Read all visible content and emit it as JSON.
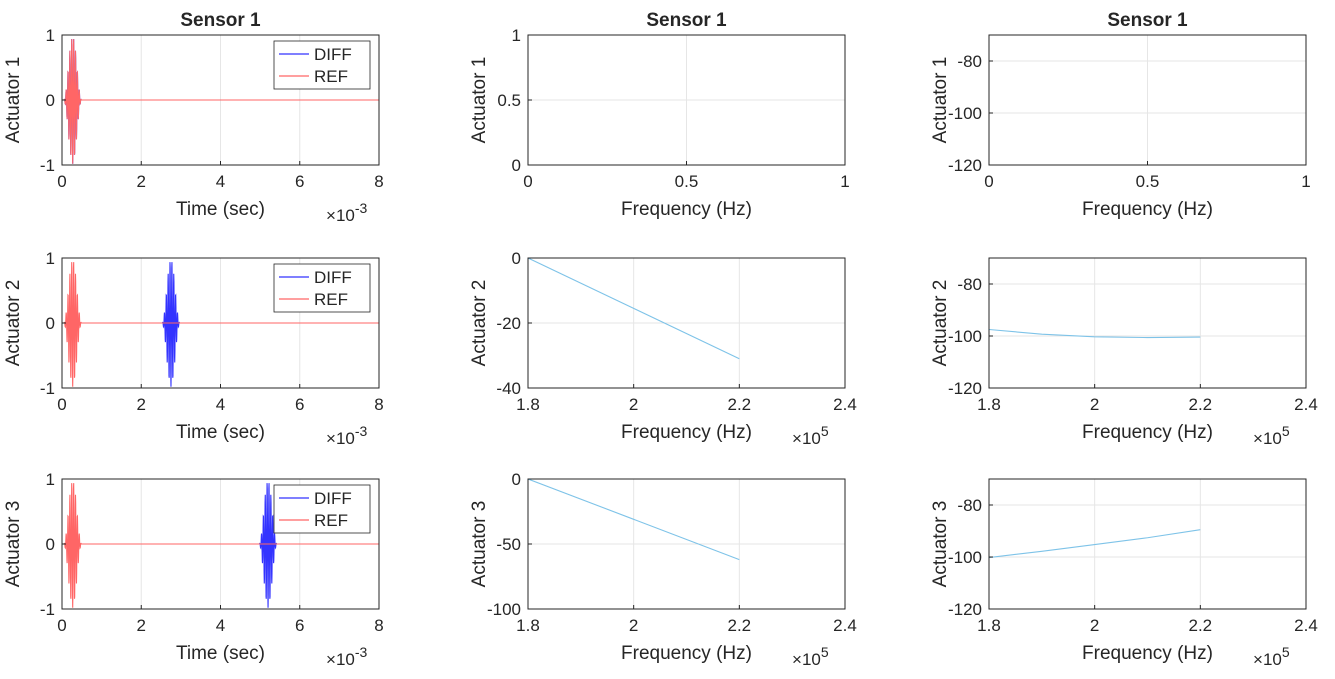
{
  "figure": {
    "colors": {
      "axes": "#262626",
      "grid": "#e6e6e6",
      "diff": "#3333ff",
      "ref": "#ff6666",
      "freq_line": "#7ec3e8"
    }
  },
  "chart_data": [
    {
      "id": "time-a1",
      "type": "line",
      "title": "Sensor 1",
      "xlabel": "Time (sec)",
      "ylabel": "Actuator 1",
      "xlim": [
        0,
        8
      ],
      "ylim": [
        -1,
        1
      ],
      "x_multiplier": "10",
      "x_exponent": "-3",
      "xticks": [
        0,
        2,
        4,
        6,
        8
      ],
      "yticks": [
        -1,
        0,
        1
      ],
      "legend": {
        "position": "top-right",
        "entries": [
          "DIFF",
          "REF"
        ]
      },
      "grid": true,
      "series": [
        {
          "name": "DIFF",
          "kind": "burst",
          "center": 0.27,
          "width": 0.45,
          "amp": 0.98,
          "cycles": 5,
          "color": "#3333ff"
        },
        {
          "name": "REF",
          "kind": "burst",
          "center": 0.27,
          "width": 0.45,
          "amp": 0.98,
          "cycles": 5,
          "color": "#ff6666"
        }
      ]
    },
    {
      "id": "mag-a1",
      "type": "line",
      "title": "Sensor 1",
      "xlabel": "Frequency (Hz)",
      "ylabel": "Actuator 1",
      "xlim": [
        0,
        1
      ],
      "ylim": [
        0,
        1
      ],
      "xticks": [
        0,
        0.5,
        1
      ],
      "yticks": [
        0,
        0.5,
        1
      ],
      "grid": true,
      "series": []
    },
    {
      "id": "phase-a1",
      "type": "line",
      "title": "Sensor 1",
      "xlabel": "Frequency (Hz)",
      "ylabel": "Actuator 1",
      "xlim": [
        0,
        1
      ],
      "ylim": [
        -120,
        -70
      ],
      "xticks": [
        0,
        0.5,
        1
      ],
      "yticks": [
        -120,
        -100,
        -80
      ],
      "grid": true,
      "series": []
    },
    {
      "id": "time-a2",
      "type": "line",
      "title": "",
      "xlabel": "Time (sec)",
      "ylabel": "Actuator 2",
      "xlim": [
        0,
        8
      ],
      "ylim": [
        -1,
        1
      ],
      "x_multiplier": "10",
      "x_exponent": "-3",
      "xticks": [
        0,
        2,
        4,
        6,
        8
      ],
      "yticks": [
        -1,
        0,
        1
      ],
      "legend": {
        "position": "top-right",
        "entries": [
          "DIFF",
          "REF"
        ]
      },
      "grid": true,
      "series": [
        {
          "name": "DIFF",
          "kind": "burst",
          "center": 2.75,
          "width": 0.45,
          "amp": 0.98,
          "cycles": 5,
          "color": "#3333ff"
        },
        {
          "name": "REF",
          "kind": "burst",
          "center": 0.27,
          "width": 0.45,
          "amp": 0.98,
          "cycles": 5,
          "color": "#ff6666"
        }
      ]
    },
    {
      "id": "mag-a2",
      "type": "line",
      "title": "",
      "xlabel": "Frequency (Hz)",
      "ylabel": "Actuator 2",
      "xlim": [
        1.8,
        2.4
      ],
      "ylim": [
        -40,
        0
      ],
      "x_multiplier": "10",
      "x_exponent": "5",
      "xticks": [
        1.8,
        2,
        2.2,
        2.4
      ],
      "yticks": [
        -40,
        -20,
        0
      ],
      "grid": true,
      "series": [
        {
          "kind": "xy",
          "x": [
            1.8,
            2.0,
            2.2
          ],
          "y": [
            0,
            -15.5,
            -31
          ],
          "color": "#7ec3e8"
        }
      ]
    },
    {
      "id": "phase-a2",
      "type": "line",
      "title": "",
      "xlabel": "Frequency (Hz)",
      "ylabel": "Actuator 2",
      "xlim": [
        1.8,
        2.4
      ],
      "ylim": [
        -120,
        -70
      ],
      "x_multiplier": "10",
      "x_exponent": "5",
      "xticks": [
        1.8,
        2,
        2.2,
        2.4
      ],
      "yticks": [
        -120,
        -100,
        -80
      ],
      "grid": true,
      "series": [
        {
          "kind": "xy",
          "x": [
            1.8,
            1.9,
            2.0,
            2.1,
            2.2
          ],
          "y": [
            -97.5,
            -99.3,
            -100.3,
            -100.6,
            -100.4
          ],
          "color": "#7ec3e8"
        }
      ]
    },
    {
      "id": "time-a3",
      "type": "line",
      "title": "",
      "xlabel": "Time (sec)",
      "ylabel": "Actuator 3",
      "xlim": [
        0,
        8
      ],
      "ylim": [
        -1,
        1
      ],
      "x_multiplier": "10",
      "x_exponent": "-3",
      "xticks": [
        0,
        2,
        4,
        6,
        8
      ],
      "yticks": [
        -1,
        0,
        1
      ],
      "legend": {
        "position": "top-right",
        "entries": [
          "DIFF",
          "REF"
        ]
      },
      "grid": true,
      "series": [
        {
          "name": "DIFF",
          "kind": "burst",
          "center": 5.2,
          "width": 0.45,
          "amp": 0.98,
          "cycles": 5,
          "color": "#3333ff"
        },
        {
          "name": "REF",
          "kind": "burst",
          "center": 0.27,
          "width": 0.45,
          "amp": 0.98,
          "cycles": 5,
          "color": "#ff6666"
        }
      ]
    },
    {
      "id": "mag-a3",
      "type": "line",
      "title": "",
      "xlabel": "Frequency (Hz)",
      "ylabel": "Actuator 3",
      "xlim": [
        1.8,
        2.4
      ],
      "ylim": [
        -100,
        0
      ],
      "x_multiplier": "10",
      "x_exponent": "5",
      "xticks": [
        1.8,
        2,
        2.2,
        2.4
      ],
      "yticks": [
        -100,
        -50,
        0
      ],
      "grid": true,
      "series": [
        {
          "kind": "xy",
          "x": [
            1.8,
            2.0,
            2.2
          ],
          "y": [
            0,
            -31,
            -62
          ],
          "color": "#7ec3e8"
        }
      ]
    },
    {
      "id": "phase-a3",
      "type": "line",
      "title": "",
      "xlabel": "Frequency (Hz)",
      "ylabel": "Actuator 3",
      "xlim": [
        1.8,
        2.4
      ],
      "ylim": [
        -120,
        -70
      ],
      "x_multiplier": "10",
      "x_exponent": "5",
      "xticks": [
        1.8,
        2,
        2.2,
        2.4
      ],
      "yticks": [
        -120,
        -100,
        -80
      ],
      "grid": true,
      "series": [
        {
          "kind": "xy",
          "x": [
            1.8,
            1.9,
            2.0,
            2.1,
            2.2
          ],
          "y": [
            -100.2,
            -97.8,
            -95.2,
            -92.6,
            -89.5
          ],
          "color": "#7ec3e8"
        }
      ]
    }
  ]
}
